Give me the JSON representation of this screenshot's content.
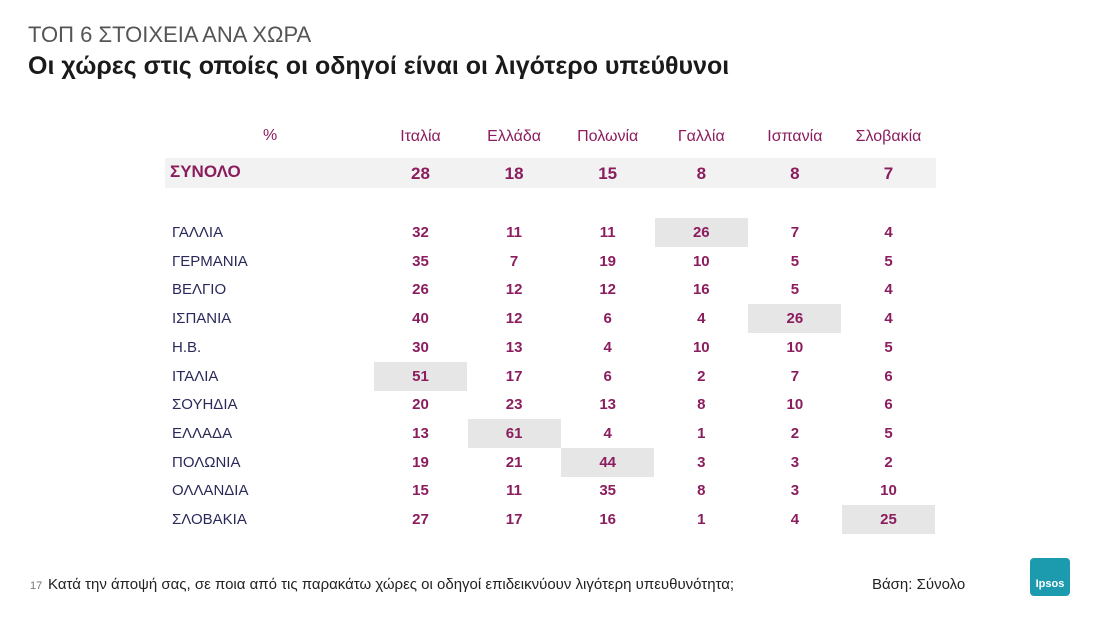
{
  "header": {
    "supertitle": "ΤΟΠ 6 ΣΤΟΙΧΕΙΑ ΑΝΑ ΧΩΡΑ",
    "title": "Οι χώρες στις οποίες οι οδηγοί είναι οι λιγότερο υπεύθυνοι"
  },
  "table": {
    "unit": "%",
    "columns": [
      "Ιταλία",
      "Ελλάδα",
      "Πολωνία",
      "Γαλλία",
      "Ισπανία",
      "Σλοβακία"
    ],
    "total": {
      "label": "ΣΥΝΟΛΟ",
      "values": [
        28,
        18,
        15,
        8,
        8,
        7
      ]
    },
    "rows": [
      {
        "label": "ΓΑΛΛΙΑ",
        "values": [
          32,
          11,
          11,
          26,
          7,
          4
        ],
        "highlight": 3
      },
      {
        "label": "ΓΕΡΜΑΝΙΑ",
        "values": [
          35,
          7,
          19,
          10,
          5,
          5
        ],
        "highlight": null
      },
      {
        "label": "ΒΕΛΓΙΟ",
        "values": [
          26,
          12,
          12,
          16,
          5,
          4
        ],
        "highlight": null
      },
      {
        "label": "ΙΣΠΑΝΙΑ",
        "values": [
          40,
          12,
          6,
          4,
          26,
          4
        ],
        "highlight": 4
      },
      {
        "label": "Η.Β.",
        "values": [
          30,
          13,
          4,
          10,
          10,
          5
        ],
        "highlight": null
      },
      {
        "label": "ΙΤΑΛΙΑ",
        "values": [
          51,
          17,
          6,
          2,
          7,
          6
        ],
        "highlight": 0
      },
      {
        "label": "ΣΟΥΗΔΙΑ",
        "values": [
          20,
          23,
          13,
          8,
          10,
          6
        ],
        "highlight": null
      },
      {
        "label": "ΕΛΛΑΔΑ",
        "values": [
          13,
          61,
          4,
          1,
          2,
          5
        ],
        "highlight": 1
      },
      {
        "label": "ΠΟΛΩΝΙΑ",
        "values": [
          19,
          21,
          44,
          3,
          3,
          2
        ],
        "highlight": 2
      },
      {
        "label": "ΟΛΛΑΝΔΙΑ",
        "values": [
          15,
          11,
          35,
          8,
          3,
          10
        ],
        "highlight": null
      },
      {
        "label": "ΣΛΟΒΑΚΙΑ",
        "values": [
          27,
          17,
          16,
          1,
          4,
          25
        ],
        "highlight": 5
      }
    ]
  },
  "footer": {
    "page": "17",
    "question": "Κατά την άποψή σας, σε ποια από τις παρακάτω χώρες οι οδηγοί επιδεικνύουν λιγότερη υπευθυνότητα;",
    "base": "Βάση: Σύνολο",
    "logo": "Ipsos"
  }
}
